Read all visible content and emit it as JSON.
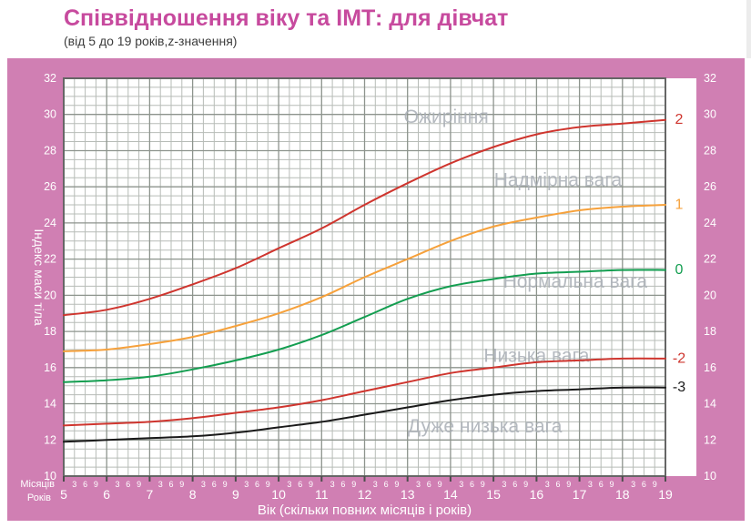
{
  "header": {
    "title": "Співвідношення віку та ІМТ: для дівчат",
    "subtitle": "(від 5 до 19 років,z-значення)"
  },
  "colors": {
    "title_accent": "#c74a9e",
    "panel_pink": "#d07fb3",
    "axis_text": "#ffffff",
    "zone_label_gray": "#a9aeb6",
    "grid_major": "#8d948d",
    "grid_minor": "#b7bcb7",
    "plot_border": "#666666"
  },
  "chart_data": {
    "type": "line",
    "title": "Співвідношення віку та ІМТ: для дівчат",
    "subtitle": "(від 5 до 19 років,z-значення)",
    "xlabel": "Вік (скільки повних місяців і років)",
    "ylabel": "Індекс маси тіла",
    "x_axis_row_labels": {
      "months": "Місяців",
      "years": "Років"
    },
    "xlim": [
      5,
      19
    ],
    "ylim": [
      10,
      32
    ],
    "grid": {
      "x_minor_step_years": 0.25,
      "y_minor_step": 0.5,
      "x_major_step_years": 1,
      "y_major_step": 2
    },
    "y_ticks": [
      10,
      12,
      14,
      16,
      18,
      20,
      22,
      24,
      26,
      28,
      30,
      32
    ],
    "x_ticks_years": [
      5,
      6,
      7,
      8,
      9,
      10,
      11,
      12,
      13,
      14,
      15,
      16,
      17,
      18,
      19
    ],
    "x_minor_month_labels": [
      "3",
      "6",
      "9"
    ],
    "categories": [
      5,
      6,
      7,
      8,
      9,
      10,
      11,
      12,
      13,
      14,
      15,
      16,
      17,
      18,
      19
    ],
    "series": [
      {
        "name": "z+2",
        "label": "2",
        "color": "#cf352e",
        "values": [
          18.9,
          19.2,
          19.8,
          20.6,
          21.5,
          22.6,
          23.7,
          25.0,
          26.2,
          27.3,
          28.2,
          28.9,
          29.3,
          29.5,
          29.7
        ]
      },
      {
        "name": "z+1",
        "label": "1",
        "color": "#f6a13b",
        "values": [
          16.9,
          17.0,
          17.3,
          17.7,
          18.3,
          19.0,
          19.9,
          21.0,
          22.0,
          23.0,
          23.8,
          24.3,
          24.7,
          24.9,
          25.0
        ]
      },
      {
        "name": "z0",
        "label": "0",
        "color": "#139e50",
        "values": [
          15.2,
          15.3,
          15.5,
          15.9,
          16.4,
          17.0,
          17.8,
          18.8,
          19.8,
          20.5,
          20.9,
          21.2,
          21.3,
          21.4,
          21.4
        ]
      },
      {
        "name": "z-2",
        "label": "-2",
        "color": "#cf352e",
        "values": [
          12.8,
          12.9,
          13.0,
          13.2,
          13.5,
          13.8,
          14.2,
          14.7,
          15.2,
          15.7,
          16.0,
          16.3,
          16.4,
          16.5,
          16.5
        ]
      },
      {
        "name": "z-3",
        "label": "-3",
        "color": "#1a1a1a",
        "values": [
          11.9,
          12.0,
          12.1,
          12.2,
          12.4,
          12.7,
          13.0,
          13.4,
          13.8,
          14.2,
          14.5,
          14.7,
          14.8,
          14.9,
          14.9
        ]
      }
    ],
    "zone_labels": [
      {
        "label": "Ожиріння",
        "x": 13.9,
        "y": 29.8
      },
      {
        "label": "Надмірна вага",
        "x": 16.5,
        "y": 26.3
      },
      {
        "label": "Нормальна вага",
        "x": 16.9,
        "y": 20.7
      },
      {
        "label": "Низька вага",
        "x": 16.0,
        "y": 16.6
      },
      {
        "label": "Дуже низька вага",
        "x": 14.8,
        "y": 12.7
      }
    ],
    "legend_position": "right-of-curve-ends"
  }
}
